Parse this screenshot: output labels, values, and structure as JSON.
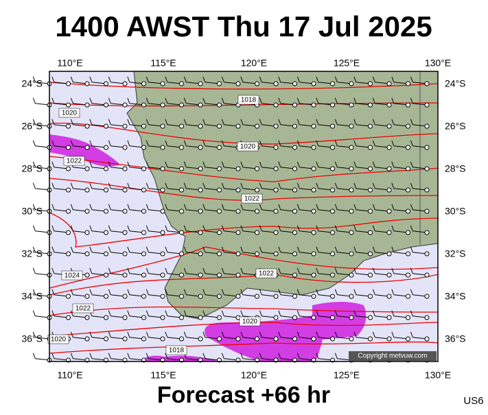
{
  "header": {
    "title": "1400 AWST Thu 17 Jul 2025"
  },
  "map": {
    "lon_labels": [
      "110°E",
      "115°E",
      "120°E",
      "125°E",
      "130°E"
    ],
    "lat_labels": [
      "24°S",
      "26°S",
      "28°S",
      "30°S",
      "32°S",
      "34°S",
      "36°S"
    ],
    "isobar_labels": [
      "1018",
      "1020",
      "1020",
      "1022",
      "1022",
      "1024",
      "1022",
      "1022",
      "1020",
      "1020",
      "1018"
    ],
    "copyright": "Copyright metvuw.com"
  },
  "footer": {
    "forecast": "Forecast +66 hr",
    "code": "US6"
  }
}
